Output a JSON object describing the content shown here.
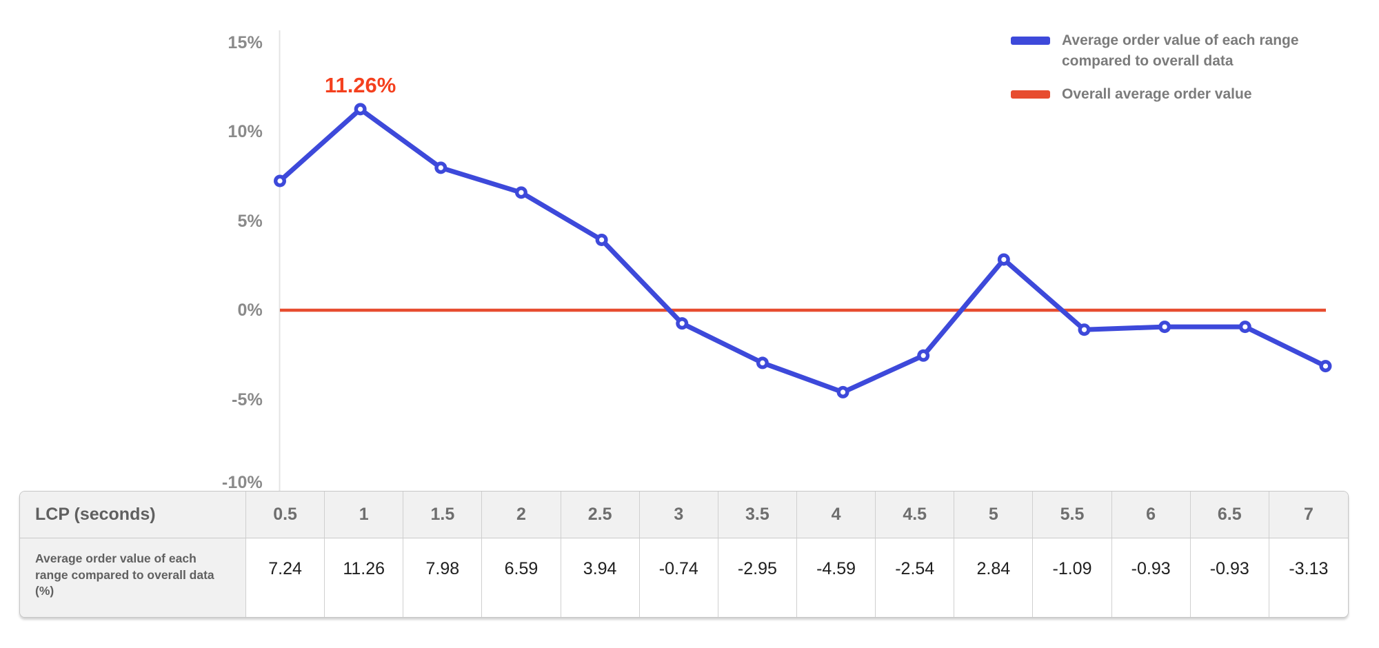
{
  "chart_data": {
    "type": "line",
    "x_field": "LCP (seconds)",
    "x": [
      0.5,
      1,
      1.5,
      2,
      2.5,
      3,
      3.5,
      4,
      4.5,
      5,
      5.5,
      6,
      6.5,
      7
    ],
    "series": [
      {
        "name": "Average order value of each range compared to overall data",
        "values": [
          7.24,
          11.26,
          7.98,
          6.59,
          3.94,
          -0.74,
          -2.95,
          -4.59,
          -2.54,
          2.84,
          -1.09,
          -0.93,
          -0.93,
          -3.13
        ],
        "color": "#3d49da"
      }
    ],
    "overall_line": {
      "label": "Overall average order value",
      "value": 0,
      "color": "#e74c2f"
    },
    "annotation": {
      "text": "11.26%",
      "at_x": 1,
      "value": 11.26,
      "color": "#f4401e"
    },
    "yticks": [
      {
        "value": 15,
        "label": "15%"
      },
      {
        "value": 10,
        "label": "10%"
      },
      {
        "value": 5,
        "label": "5%"
      },
      {
        "value": 0,
        "label": "0%"
      },
      {
        "value": -5,
        "label": "-5%"
      },
      {
        "value": -10,
        "label": "-10%"
      }
    ],
    "ylim": [
      -10,
      15
    ],
    "grid": "none",
    "axis_line_color": "#e4e4e4",
    "legend_position": "top-right"
  },
  "table": {
    "corner_label": "LCP (seconds)",
    "columns": [
      "0.5",
      "1",
      "1.5",
      "2",
      "2.5",
      "3",
      "3.5",
      "4",
      "4.5",
      "5",
      "5.5",
      "6",
      "6.5",
      "7"
    ],
    "rows": [
      {
        "label": "Average order value of each range compared to overall data (%)",
        "values": [
          "7.24",
          "11.26",
          "7.98",
          "6.59",
          "3.94",
          "-0.74",
          "-2.95",
          "-4.59",
          "-2.54",
          "2.84",
          "-1.09",
          "-0.93",
          "-0.93",
          "-3.13"
        ]
      }
    ]
  }
}
